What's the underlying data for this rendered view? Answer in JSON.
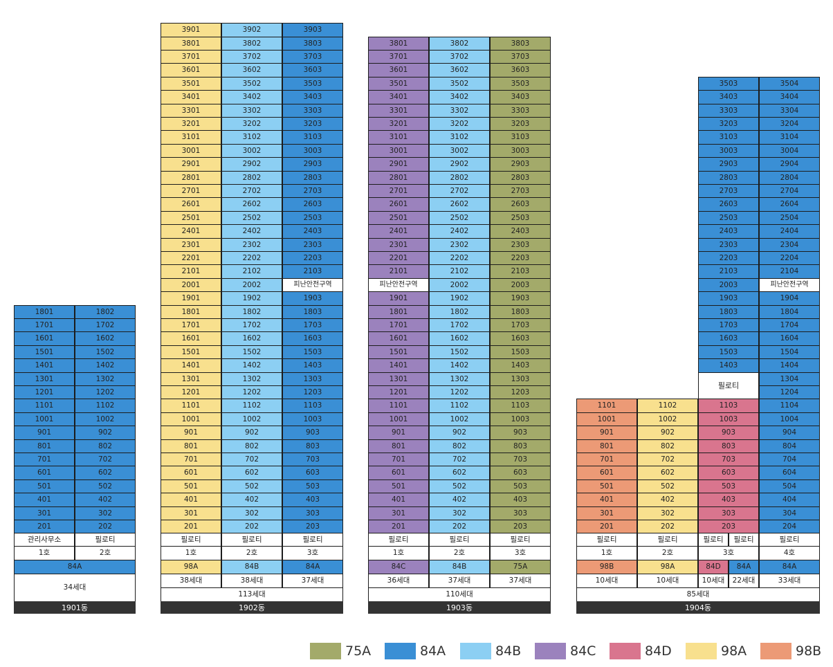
{
  "colors": {
    "75A": "#a3aa6a",
    "84A": "#3a8fd5",
    "84B": "#8ccff3",
    "84C": "#9b82bd",
    "84D": "#d9758e",
    "98A": "#f8e08e",
    "98B": "#ec9a76",
    "white": "#ffffff"
  },
  "legend": [
    {
      "label": "75A",
      "type": "75A"
    },
    {
      "label": "84A",
      "type": "84A"
    },
    {
      "label": "84B",
      "type": "84B"
    },
    {
      "label": "84C",
      "type": "84C"
    },
    {
      "label": "84D",
      "type": "84D"
    },
    {
      "label": "98A",
      "type": "98A"
    },
    {
      "label": "98B",
      "type": "98B"
    }
  ],
  "buildings": [
    {
      "name": "1901동",
      "top_floor": 18,
      "lines": [
        {
          "line": "1호",
          "type": "84A",
          "units": [
            "1801",
            "1701",
            "1601",
            "1501",
            "1401",
            "1301",
            "1201",
            "1101",
            "1001",
            "901",
            "801",
            "701",
            "601",
            "501",
            "401",
            "301",
            "201"
          ],
          "ground": "관리사무소",
          "bottom_span": true
        },
        {
          "line": "2호",
          "type": "84A",
          "units": [
            "1802",
            "1702",
            "1602",
            "1502",
            "1402",
            "1302",
            "1202",
            "1102",
            "1002",
            "902",
            "802",
            "702",
            "602",
            "502",
            "402",
            "302",
            "202"
          ],
          "ground": "필로티",
          "bottom_span": true
        }
      ],
      "span_type": "84A",
      "span_count": "34세대",
      "total": "",
      "floor_overrides": []
    },
    {
      "name": "1902동",
      "top_floor": 39,
      "lines": [
        {
          "line": "1호",
          "type": "98A",
          "units": [
            "3901",
            "3801",
            "3701",
            "3601",
            "3501",
            "3401",
            "3301",
            "3201",
            "3101",
            "3001",
            "2901",
            "2801",
            "2701",
            "2601",
            "2501",
            "2401",
            "2301",
            "2201",
            "2101",
            "2001",
            "1901",
            "1801",
            "1701",
            "1601",
            "1501",
            "1401",
            "1301",
            "1201",
            "1101",
            "1001",
            "901",
            "801",
            "701",
            "601",
            "501",
            "401",
            "301",
            "201"
          ],
          "ground": "필로티",
          "count": "38세대"
        },
        {
          "line": "2호",
          "type": "84B",
          "units": [
            "3902",
            "3802",
            "3702",
            "3602",
            "3502",
            "3402",
            "3302",
            "3202",
            "3102",
            "3002",
            "2902",
            "2802",
            "2702",
            "2602",
            "2502",
            "2402",
            "2302",
            "2202",
            "2102",
            "2002",
            "1902",
            "1802",
            "1702",
            "1602",
            "1502",
            "1402",
            "1302",
            "1202",
            "1102",
            "1002",
            "902",
            "802",
            "702",
            "602",
            "502",
            "402",
            "302",
            "202"
          ],
          "ground": "필로티",
          "count": "38세대"
        },
        {
          "line": "3호",
          "type": "84A",
          "units": [
            "3903",
            "3803",
            "3703",
            "3603",
            "3503",
            "3403",
            "3303",
            "3203",
            "3103",
            "3003",
            "2903",
            "2803",
            "2703",
            "2603",
            "2503",
            "2403",
            "2303",
            "2203",
            "2103",
            "피난안전구역",
            "1903",
            "1803",
            "1703",
            "1603",
            "1503",
            "1403",
            "1303",
            "1203",
            "1103",
            "1003",
            "903",
            "803",
            "703",
            "603",
            "503",
            "403",
            "303",
            "203"
          ],
          "ground": "필로티",
          "count": "37세대"
        }
      ],
      "total": "113세대"
    },
    {
      "name": "1903동",
      "top_floor": 38,
      "lines": [
        {
          "line": "1호",
          "type": "84C",
          "units": [
            "3801",
            "3701",
            "3601",
            "3501",
            "3401",
            "3301",
            "3201",
            "3101",
            "3001",
            "2901",
            "2801",
            "2701",
            "2601",
            "2501",
            "2401",
            "2301",
            "2201",
            "2101",
            "피난안전구역",
            "1901",
            "1801",
            "1701",
            "1601",
            "1501",
            "1401",
            "1301",
            "1201",
            "1101",
            "1001",
            "901",
            "801",
            "701",
            "601",
            "501",
            "401",
            "301",
            "201"
          ],
          "ground": "필로티",
          "count": "36세대"
        },
        {
          "line": "2호",
          "type": "84B",
          "units": [
            "3802",
            "3702",
            "3602",
            "3502",
            "3402",
            "3302",
            "3202",
            "3102",
            "3002",
            "2902",
            "2802",
            "2702",
            "2602",
            "2502",
            "2402",
            "2302",
            "2202",
            "2102",
            "2002",
            "1902",
            "1802",
            "1702",
            "1602",
            "1502",
            "1402",
            "1302",
            "1202",
            "1102",
            "1002",
            "902",
            "802",
            "702",
            "602",
            "502",
            "402",
            "302",
            "202"
          ],
          "ground": "필로티",
          "count": "37세대"
        },
        {
          "line": "3호",
          "type": "75A",
          "units": [
            "3803",
            "3703",
            "3603",
            "3503",
            "3403",
            "3303",
            "3203",
            "3103",
            "3003",
            "2903",
            "2803",
            "2703",
            "2603",
            "2503",
            "2403",
            "2303",
            "2203",
            "2103",
            "2003",
            "1903",
            "1803",
            "1703",
            "1603",
            "1503",
            "1403",
            "1303",
            "1203",
            "1103",
            "1003",
            "903",
            "803",
            "703",
            "603",
            "503",
            "403",
            "303",
            "203"
          ],
          "ground": "필로티",
          "count": "37세대"
        }
      ],
      "total": "110세대"
    },
    {
      "name": "1904동",
      "top_floor": 35,
      "lines": [
        {
          "line": "1호",
          "type": "98B",
          "units": [
            "1101",
            "1001",
            "901",
            "801",
            "701",
            "601",
            "501",
            "401",
            "301",
            "201"
          ],
          "ground": "필로티",
          "count": "10세대",
          "top": 11
        },
        {
          "line": "2호",
          "type": "98A",
          "units": [
            "1102",
            "1002",
            "902",
            "802",
            "702",
            "602",
            "502",
            "402",
            "302",
            "202"
          ],
          "ground": "필로티",
          "count": "10세대",
          "top": 11
        },
        {
          "line": "3호",
          "type": "84D",
          "units_top": [
            "3503",
            "3403",
            "3303",
            "3203",
            "3103",
            "3003",
            "2903",
            "2803",
            "2703",
            "2603",
            "2503",
            "2403",
            "2303",
            "2203",
            "2103",
            "2003",
            "1903",
            "1803",
            "1703",
            "1603",
            "1503",
            "1403"
          ],
          "pilotis": "필로티",
          "units_low": [
            "1103",
            "1003",
            "903",
            "803",
            "703",
            "603",
            "503",
            "403",
            "303",
            "203"
          ],
          "ground": [
            "필로티",
            "필로티"
          ],
          "type_split": [
            {
              "type": "84D",
              "label": "84D",
              "count": "10세대"
            },
            {
              "type": "84A",
              "label": "84A",
              "count": "22세대"
            }
          ]
        },
        {
          "line": "4호",
          "type": "84A",
          "units": [
            "3504",
            "3404",
            "3304",
            "3204",
            "3104",
            "3004",
            "2904",
            "2804",
            "2704",
            "2604",
            "2504",
            "2404",
            "2304",
            "2204",
            "2104",
            "피난안전구역",
            "1904",
            "1804",
            "1704",
            "1604",
            "1504",
            "1404",
            "1304",
            "1204",
            "1104",
            "1004",
            "904",
            "804",
            "704",
            "604",
            "504",
            "404",
            "304",
            "204"
          ],
          "ground": "필로티",
          "count": "33세대"
        }
      ],
      "total": "85세대"
    }
  ]
}
